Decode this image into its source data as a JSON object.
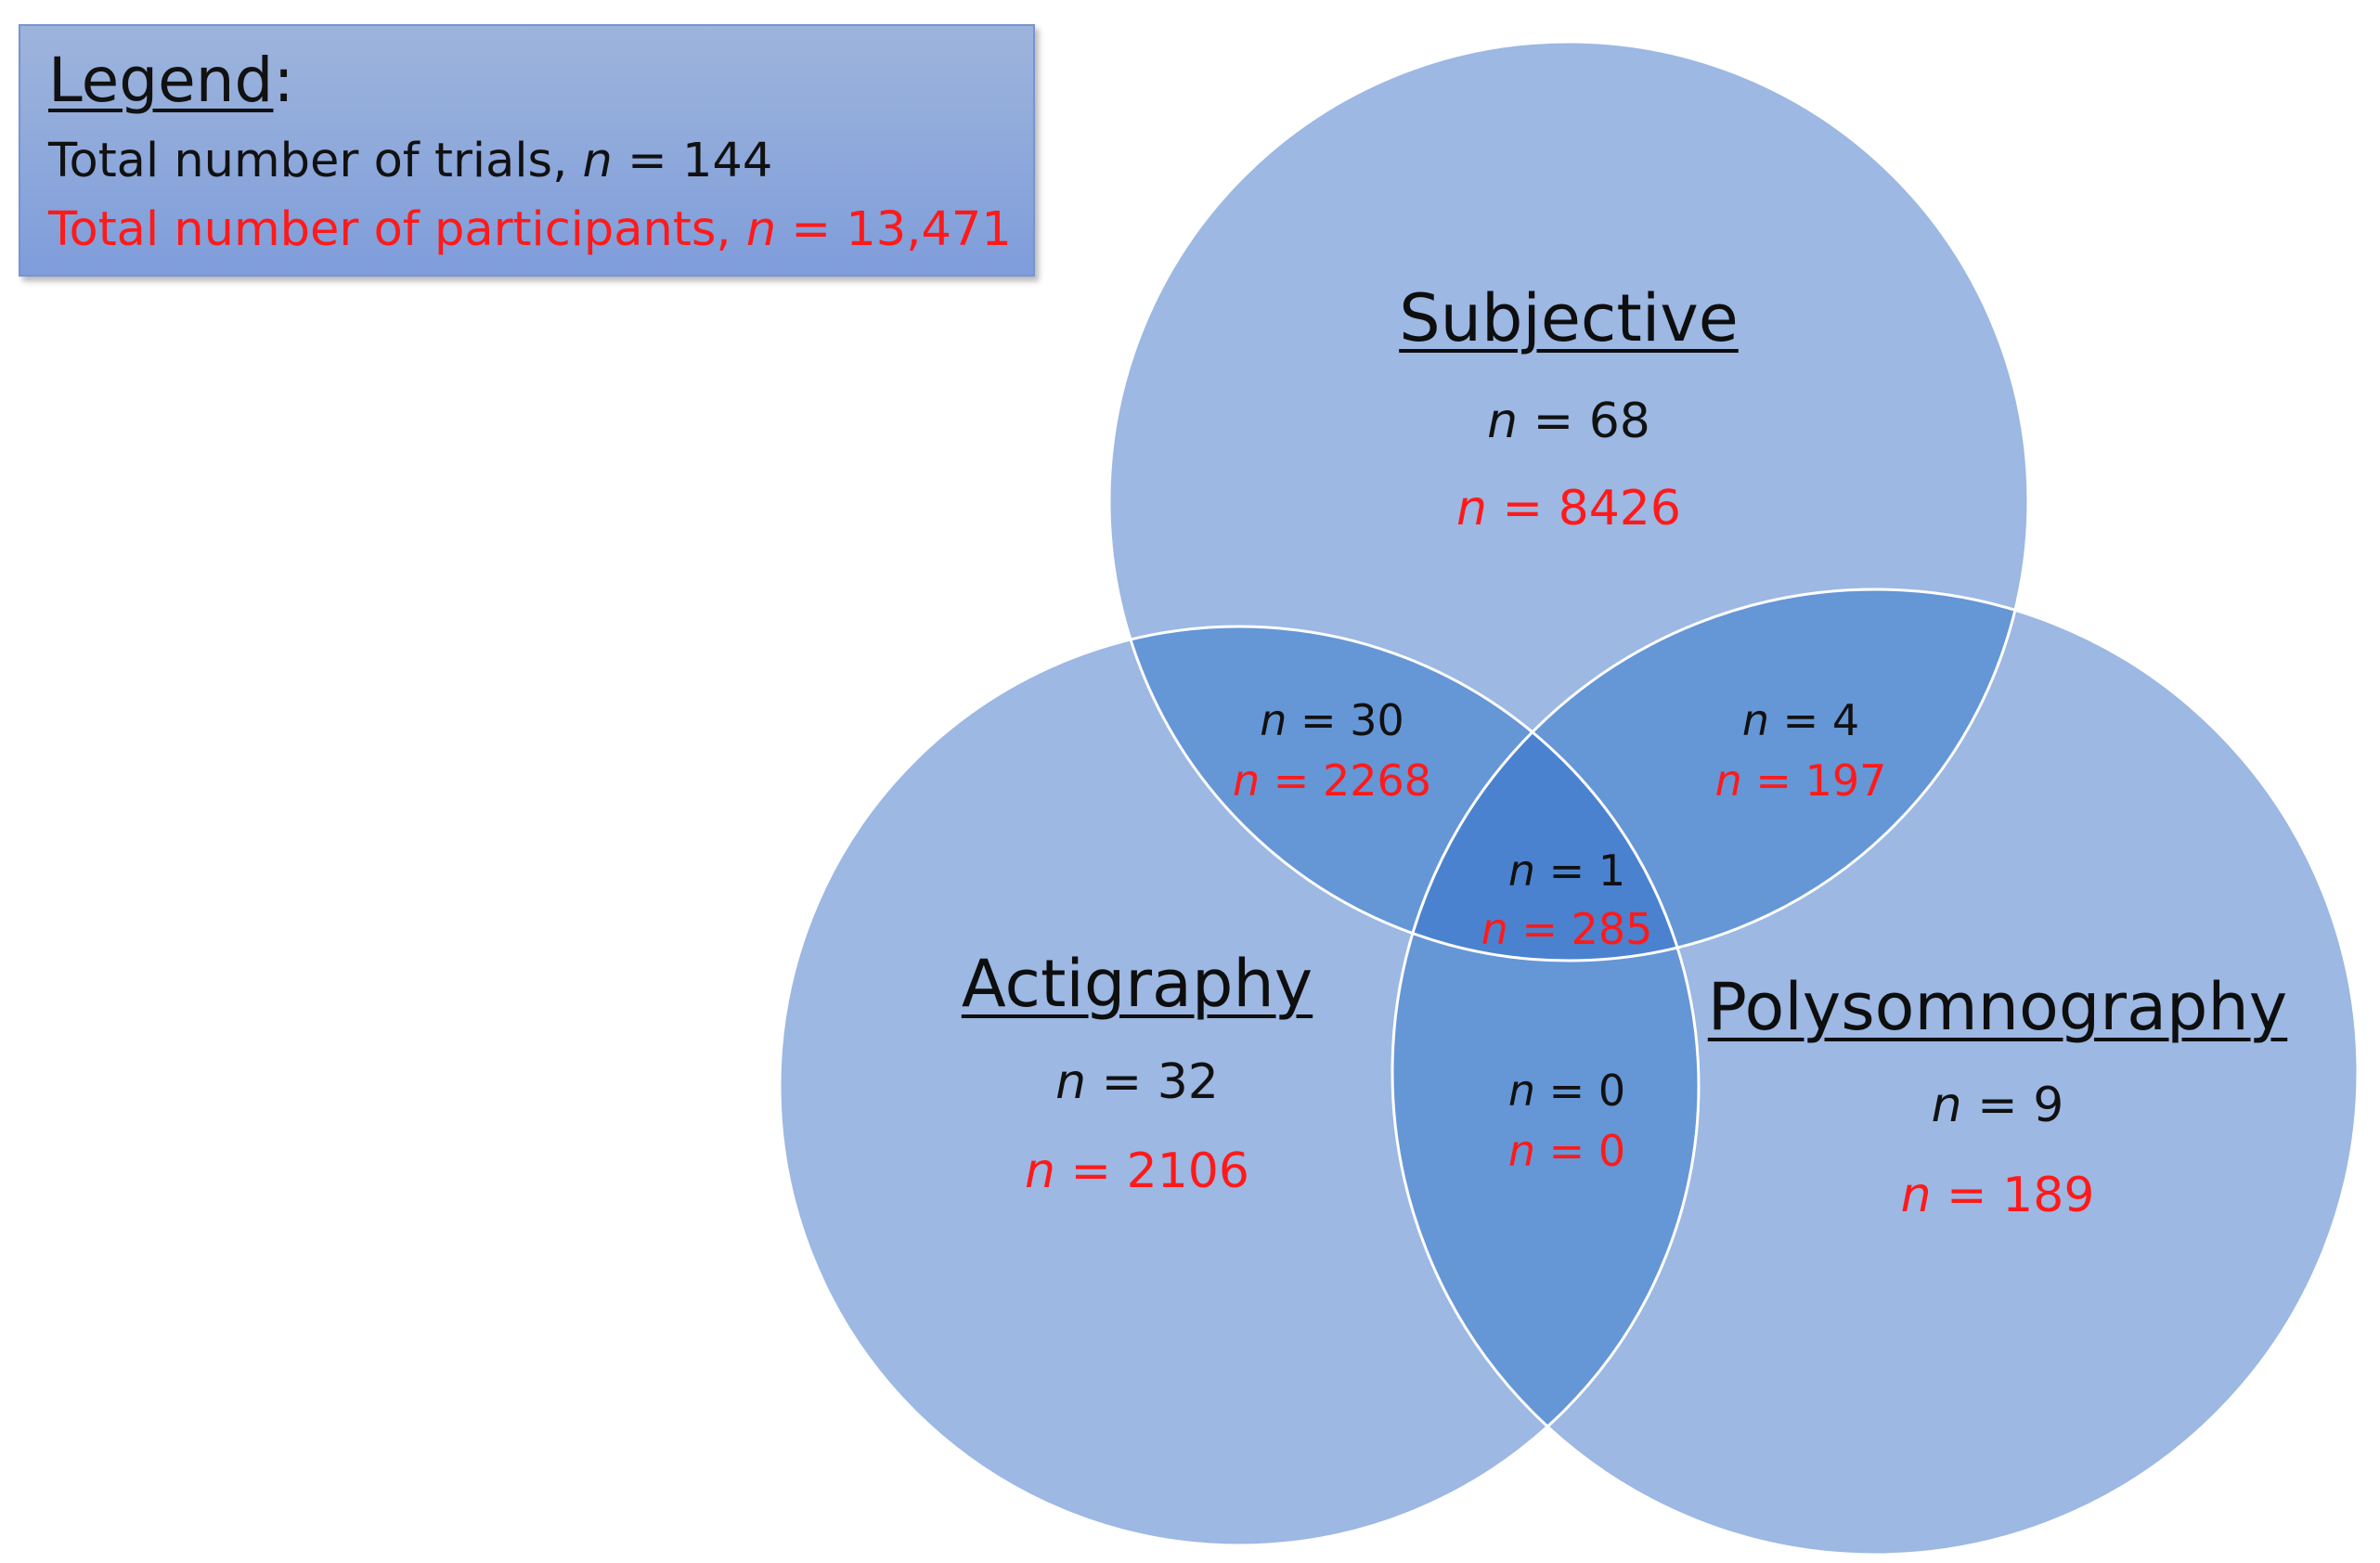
{
  "legend": {
    "title": "Legend",
    "colon": ":",
    "trials_label": "Total number of trials, ",
    "trials_value": "144",
    "participants_label": "Total number of participants, ",
    "participants_value": "13,471",
    "n_symbol": "n",
    "equals": " = "
  },
  "sets": {
    "subjective": {
      "title": "Subjective",
      "trials": "68",
      "participants": "8426"
    },
    "actigraphy": {
      "title": "Actigraphy",
      "trials": "32",
      "participants": "2106"
    },
    "polysomnography": {
      "title": "Polysomnography",
      "trials": "9",
      "participants": "189"
    }
  },
  "intersections": {
    "subjective_actigraphy": {
      "trials": "30",
      "participants": "2268"
    },
    "subjective_polysomnography": {
      "trials": "4",
      "participants": "197"
    },
    "actigraphy_polysomnography": {
      "trials": "0",
      "participants": "0"
    },
    "all_three": {
      "trials": "1",
      "participants": "285"
    }
  },
  "colors": {
    "circle_fill": "#9cb8e3",
    "overlap_two": "#6596d6",
    "overlap_three": "#4a82cf",
    "circle_stroke": "#ffffff",
    "trials_text": "#111111",
    "participants_text": "#ff1a1a",
    "legend_bg": "#90aadb"
  }
}
